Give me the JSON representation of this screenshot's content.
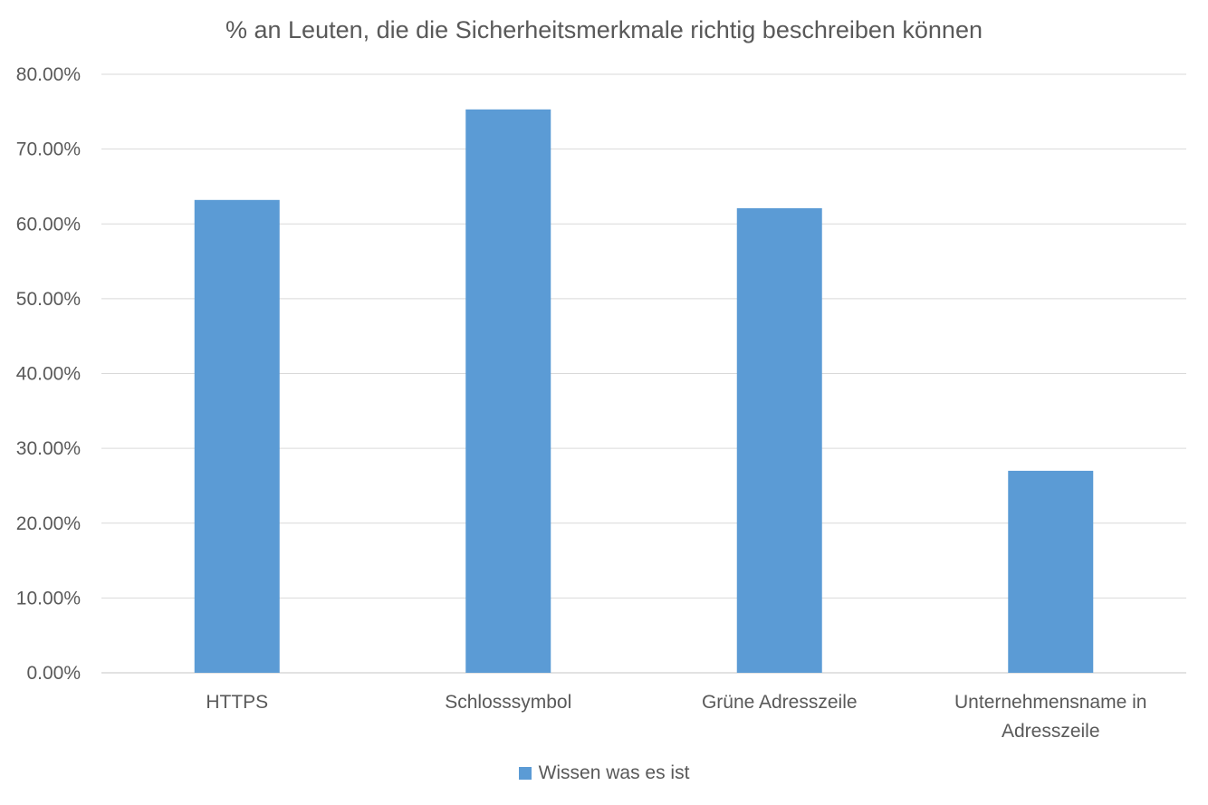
{
  "chart_data": {
    "type": "bar",
    "title": "% an Leuten, die die Sicherheitsmerkmale richtig beschreiben können",
    "categories": [
      "HTTPS",
      "Schlosssymbol",
      "Grüne Adresszeile",
      "Unternehmensname in Adresszeile"
    ],
    "category_lines": [
      [
        "HTTPS"
      ],
      [
        "Schlosssymbol"
      ],
      [
        "Grüne Adresszeile"
      ],
      [
        "Unternehmensname in",
        "Adresszeile"
      ]
    ],
    "series": [
      {
        "name": "Wissen was es ist",
        "values": [
          0.632,
          0.753,
          0.621,
          0.27
        ],
        "color": "#5B9BD5"
      }
    ],
    "ylim": [
      0,
      0.8
    ],
    "yticks": [
      0,
      0.1,
      0.2,
      0.3,
      0.4,
      0.5,
      0.6,
      0.7,
      0.8
    ],
    "ytick_labels": [
      "0.00%",
      "10.00%",
      "20.00%",
      "30.00%",
      "40.00%",
      "50.00%",
      "60.00%",
      "70.00%",
      "80.00%"
    ],
    "grid": true,
    "legend_position": "bottom",
    "colors": {
      "gridline": "#D9D9D9",
      "text": "#595959"
    }
  }
}
